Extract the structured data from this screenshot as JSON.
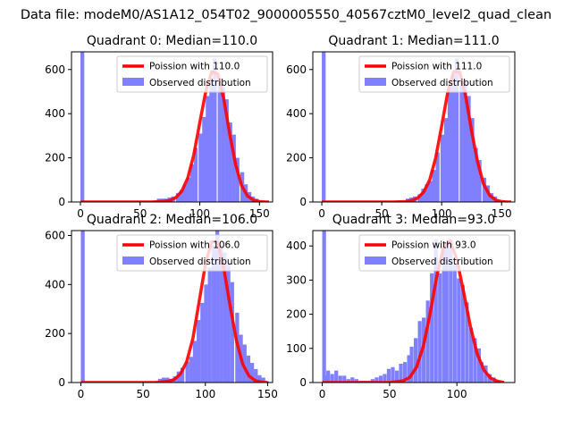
{
  "figure": {
    "suptitle": "Data file: modeM0/AS1A12_054T02_9000005550_40567cztM0_level2_quad_clean"
  },
  "colors": {
    "hist": "#8080ff",
    "poisson": "#ff0000",
    "axis": "#000000",
    "background": "#ffffff"
  },
  "chart_data": [
    {
      "type": "bar",
      "title": "Quadrant 0: Median=110.0",
      "xlim": [
        -7.5,
        161
      ],
      "ylim": [
        0,
        680
      ],
      "xticks": [
        "0",
        "50",
        "100",
        "150"
      ],
      "yticks": [
        "0",
        "200",
        "400",
        "600"
      ],
      "grid": false,
      "legend_position": "top-right",
      "legend": [
        "Poission with 110.0",
        "Observed distribution"
      ],
      "series": [
        {
          "name": "Observed distribution",
          "kind": "hist",
          "bin_width": 3.2,
          "bins": [
            [
              0,
              680
            ],
            [
              61,
              5
            ],
            [
              64,
              15
            ],
            [
              67,
              15
            ],
            [
              70,
              15
            ],
            [
              73,
              20
            ],
            [
              76,
              25
            ],
            [
              80,
              40
            ],
            [
              83,
              55
            ],
            [
              86,
              80
            ],
            [
              89,
              110
            ],
            [
              92,
              170
            ],
            [
              95,
              245
            ],
            [
              99,
              310
            ],
            [
              102,
              385
            ],
            [
              105,
              480
            ],
            [
              108,
              560
            ],
            [
              111,
              650
            ],
            [
              115,
              560
            ],
            [
              118,
              520
            ],
            [
              121,
              465
            ],
            [
              124,
              360
            ],
            [
              127,
              305
            ],
            [
              130,
              200
            ],
            [
              134,
              135
            ],
            [
              137,
              80
            ],
            [
              140,
              45
            ],
            [
              143,
              25
            ],
            [
              146,
              15
            ],
            [
              150,
              5
            ]
          ]
        },
        {
          "name": "Poission with 110.0",
          "kind": "line",
          "x": [
            0,
            60,
            70,
            75,
            80,
            85,
            90,
            95,
            100,
            105,
            110,
            115,
            120,
            125,
            130,
            135,
            140,
            145,
            150,
            155,
            158
          ],
          "y": [
            0,
            0,
            3,
            7,
            20,
            50,
            110,
            215,
            360,
            500,
            590,
            580,
            470,
            310,
            170,
            75,
            27,
            8,
            2,
            0,
            0
          ]
        }
      ]
    },
    {
      "type": "bar",
      "title": "Quadrant 1: Median=111.0",
      "xlim": [
        -7.5,
        161
      ],
      "ylim": [
        0,
        680
      ],
      "xticks": [
        "0",
        "50",
        "100",
        "150"
      ],
      "yticks": [
        "0",
        "200",
        "400",
        "600"
      ],
      "grid": false,
      "legend_position": "top-right",
      "legend": [
        "Poission with 111.0",
        "Observed distribution"
      ],
      "series": [
        {
          "name": "Observed distribution",
          "kind": "hist",
          "bin_width": 3.2,
          "bins": [
            [
              0,
              680
            ],
            [
              70,
              15
            ],
            [
              73,
              20
            ],
            [
              76,
              25
            ],
            [
              80,
              35
            ],
            [
              83,
              60
            ],
            [
              86,
              80
            ],
            [
              89,
              95
            ],
            [
              92,
              145
            ],
            [
              95,
              225
            ],
            [
              99,
              305
            ],
            [
              102,
              380
            ],
            [
              105,
              520
            ],
            [
              108,
              575
            ],
            [
              111,
              650
            ],
            [
              115,
              550
            ],
            [
              118,
              545
            ],
            [
              121,
              480
            ],
            [
              124,
              380
            ],
            [
              127,
              245
            ],
            [
              130,
              190
            ],
            [
              134,
              110
            ],
            [
              137,
              75
            ],
            [
              140,
              40
            ],
            [
              143,
              25
            ],
            [
              146,
              10
            ],
            [
              150,
              5
            ]
          ]
        },
        {
          "name": "Poission with 111.0",
          "kind": "line",
          "x": [
            0,
            60,
            70,
            75,
            80,
            85,
            90,
            95,
            100,
            105,
            110,
            115,
            120,
            125,
            130,
            135,
            140,
            145,
            150,
            155,
            158
          ],
          "y": [
            0,
            0,
            2,
            6,
            18,
            45,
            100,
            200,
            345,
            495,
            590,
            590,
            480,
            320,
            180,
            80,
            30,
            9,
            2,
            0,
            0
          ]
        }
      ]
    },
    {
      "type": "bar",
      "title": "Quadrant 2: Median=106.0",
      "xlim": [
        -7.5,
        154
      ],
      "ylim": [
        0,
        620
      ],
      "xticks": [
        "0",
        "50",
        "100",
        "150"
      ],
      "yticks": [
        "0",
        "200",
        "400",
        "600"
      ],
      "grid": false,
      "legend_position": "top-right",
      "legend": [
        "Poission with 106.0",
        "Observed distribution"
      ],
      "series": [
        {
          "name": "Observed distribution",
          "kind": "hist",
          "bin_width": 3.1,
          "bins": [
            [
              0,
              620
            ],
            [
              59,
              5
            ],
            [
              62,
              15
            ],
            [
              65,
              20
            ],
            [
              68,
              20
            ],
            [
              71,
              15
            ],
            [
              74,
              25
            ],
            [
              77,
              45
            ],
            [
              80,
              60
            ],
            [
              84,
              85
            ],
            [
              87,
              105
            ],
            [
              90,
              170
            ],
            [
              93,
              255
            ],
            [
              96,
              325
            ],
            [
              99,
              400
            ],
            [
              102,
              470
            ],
            [
              105,
              560
            ],
            [
              108,
              650
            ],
            [
              111,
              560
            ],
            [
              114,
              530
            ],
            [
              117,
              490
            ],
            [
              120,
              410
            ],
            [
              124,
              285
            ],
            [
              127,
              195
            ],
            [
              130,
              155
            ],
            [
              133,
              110
            ],
            [
              136,
              80
            ],
            [
              139,
              55
            ],
            [
              142,
              30
            ],
            [
              145,
              20
            ],
            [
              148,
              5
            ]
          ]
        },
        {
          "name": "Poission with 106.0",
          "kind": "line",
          "x": [
            0,
            60,
            70,
            75,
            80,
            85,
            90,
            95,
            100,
            105,
            110,
            115,
            120,
            125,
            130,
            135,
            140,
            145,
            150
          ],
          "y": [
            0,
            0,
            5,
            12,
            35,
            85,
            180,
            330,
            480,
            575,
            570,
            460,
            310,
            170,
            75,
            27,
            8,
            2,
            0
          ]
        }
      ]
    },
    {
      "type": "bar",
      "title": "Quadrant 3: Median=93.0",
      "xlim": [
        -7,
        143
      ],
      "ylim": [
        0,
        445
      ],
      "xticks": [
        "0",
        "50",
        "100"
      ],
      "yticks": [
        "0",
        "100",
        "200",
        "300",
        "400"
      ],
      "grid": false,
      "legend_position": "top-right",
      "legend": [
        "Poission with 93.0",
        "Observed distribution"
      ],
      "series": [
        {
          "name": "Observed distribution",
          "kind": "hist",
          "bin_width": 2.8,
          "bins": [
            [
              0,
              445
            ],
            [
              0.5,
              20
            ],
            [
              3,
              35
            ],
            [
              6,
              25
            ],
            [
              9,
              35
            ],
            [
              12,
              20
            ],
            [
              15,
              20
            ],
            [
              18,
              10
            ],
            [
              21,
              15
            ],
            [
              24,
              10
            ],
            [
              27,
              5
            ],
            [
              30,
              5
            ],
            [
              33,
              5
            ],
            [
              36,
              10
            ],
            [
              39,
              15
            ],
            [
              42,
              20
            ],
            [
              45,
              25
            ],
            [
              48,
              40
            ],
            [
              51,
              45
            ],
            [
              54,
              35
            ],
            [
              57,
              55
            ],
            [
              60,
              60
            ],
            [
              63,
              80
            ],
            [
              65,
              105
            ],
            [
              68,
              130
            ],
            [
              71,
              180
            ],
            [
              74,
              190
            ],
            [
              77,
              240
            ],
            [
              80,
              320
            ],
            [
              83,
              420
            ],
            [
              86,
              320
            ],
            [
              89,
              390
            ],
            [
              91,
              410
            ],
            [
              94,
              420
            ],
            [
              97,
              345
            ],
            [
              100,
              305
            ],
            [
              103,
              285
            ],
            [
              106,
              235
            ],
            [
              109,
              160
            ],
            [
              112,
              130
            ],
            [
              115,
              100
            ],
            [
              117,
              60
            ],
            [
              120,
              50
            ],
            [
              123,
              25
            ],
            [
              126,
              15
            ],
            [
              129,
              5
            ]
          ]
        },
        {
          "name": "Poission with 93.0",
          "kind": "line",
          "x": [
            0,
            50,
            60,
            65,
            70,
            75,
            80,
            85,
            90,
            95,
            100,
            105,
            110,
            115,
            120,
            125,
            130,
            135
          ],
          "y": [
            0,
            0,
            5,
            15,
            45,
            105,
            200,
            310,
            395,
            415,
            360,
            265,
            165,
            85,
            37,
            13,
            4,
            0
          ]
        }
      ]
    }
  ]
}
